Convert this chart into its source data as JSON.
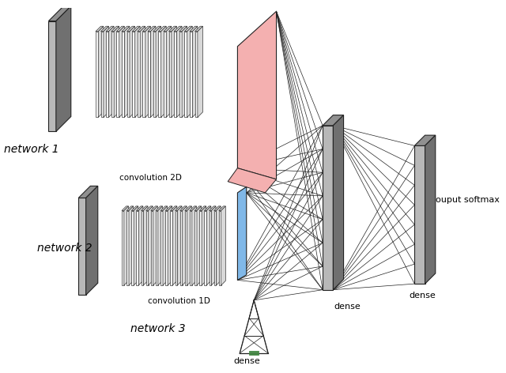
{
  "bg_color": "#ffffff",
  "network1_label": "network 1",
  "network2_label": "network 2",
  "network3_label": "network 3",
  "conv2d_label": "convolution 2D",
  "conv1d_label": "convolution 1D",
  "dense_label_mid": "dense",
  "dense_label_right": "dense",
  "dense_label_net3": "dense",
  "output_label": "ouput softmax",
  "gray_dark": "#707070",
  "gray_mid": "#909090",
  "gray_light": "#b8b8b8",
  "gray_lighter": "#d8d8d8",
  "white": "#ffffff",
  "red_fill": "#f4b0b0",
  "blue_fill": "#80b8e8",
  "green_color": "#448844",
  "line_col": "#222222"
}
